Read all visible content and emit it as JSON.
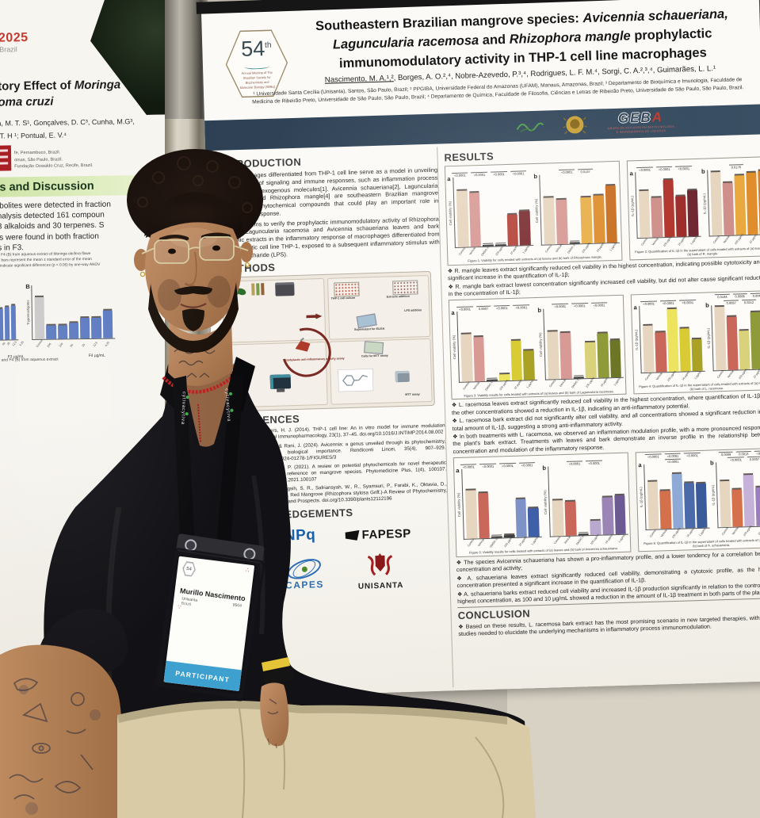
{
  "scene": {
    "lanyard_brand": "cytiva",
    "lanyard_repeat": [
      "cytiva",
      "cytiva"
    ]
  },
  "left_poster": {
    "year": "2025",
    "country": "Brazil",
    "title_pre": "atory Effect of ",
    "title_it1": "Moringa",
    "title_it2": "soma cruzi",
    "authors_l1": "eia, M. T. S¹, Gonçalves, D. C³, Cunha, M.G³,",
    "authors_l2": "o, T. H ¹; Pontual, E. V.⁴",
    "affiliations": [
      "fe, Pernambuco, Brazil.",
      "oinas, São Paulo, Brazil.",
      "Fundação Oswaldo Cruz, Recife, Brazil."
    ],
    "band": "lts and Discussion",
    "body_lines": [
      "tabolites were detected in fraction",
      "analysis detected 161 compoun",
      "73 alkaloids and 30 terpenes. S",
      "ids were found in both fraction",
      "ns in F3."
    ],
    "caption_lines": [
      "and F4 (B) from aqueous extract of Moringa oleifera flowe",
      "The bars represent the mean ± standard error of the mean",
      "ers indicate significant differences (p < 0.05) by one-way ANOV"
    ],
    "xlabel_a": "F3 µg/mL",
    "xlabel_b": "F4 µg/mL",
    "bottom_caption": "(A) and F4 (B) from aqueous extract"
  },
  "right_poster": {
    "logo54": {
      "number": "54",
      "sup": "th",
      "lines": [
        "Annual Meeting of The",
        "Brazilian Society for",
        "Biochemistry and",
        "Molecular Biology (SBBq)"
      ]
    },
    "title": {
      "l1a": "Southeastern Brazilian mangrove species: ",
      "l1b": "Avicennia schaueriana,",
      "l2a": "Laguncularia racemosa",
      "l2b": " and ",
      "l2c": "Rhizophora mangle",
      "l2d": " prophylactic",
      "l3": "immunomodulatory activity in THP-1 cell line macrophages"
    },
    "authors_presenting": "Nascimento, M. A.¹,²",
    "authors_rest": ", Borges, A. O.²,⁴, Nobre-Azevedo, P.³,⁴, Rodrigues, L. F. M.⁴, Sorgi, C. A.²,³,⁴, Guimarães, L. L.¹",
    "affiliations": "¹ Universidade Santa Cecília (Unisanta), Santos, São Paulo, Brazil; ² PPGIBA, Universidade Federal do Amazonas (UFAM), Manaus, Amazonas, Brazil; ³ Departamento de Bioquímica e Imunologia, Faculdade de Medicina de Ribeirão Preto, Universidade de São Paulo, São Paulo, Brazil; ⁴ Departamento de Química, Faculdade de Filosofia, Ciências e Letras de Ribeirão Preto, Universidade de São Paulo, São Paulo, Brazil.",
    "geba": {
      "white": "GEB",
      "red": "A",
      "sub1": "GRUPO DE ESTUDOS EM BIOTECNOLOGIA",
      "sub2": "E IMUNOQUÍMICA DE LÍQUIDOS"
    },
    "intro": {
      "heading": "INTRODUCTION",
      "p1": "The macrophages differentiated from THP-1 cell line serve as a model in unveiling different types of signaling and immune responses, such as inflammation process modulation by exogenous molecules[1]. Avicennia schaueriana[2], Laguncularia racemosa[3] and Rhizophora mangle[4] are southeastern Brazilian mangrove species with phytochemical compounds that could play an important role in inflammatory response.",
      "p2": "This study aims to verify the prophylactic immunomodulatory activity of Rhizophora mangle, Laguncularia racemosa and Avicennia schaueriana leaves and bark ethanolic extracts in the inflammatory response of macrophages differentiated from the monocytic cell line THP-1, exposed to a subsequent inflammatory stimulus with lipopolysaccharide (LPS)."
    },
    "methods": {
      "heading": "METHODS",
      "labels": [
        "THP-1 cell culture",
        "Extracts addition",
        "LPS addition",
        "Supernatant for ELISA",
        "Cells for MTT assay",
        "Prophylactic anti-inflammatory activity assay",
        "MTT assay"
      ]
    },
    "references": {
      "heading": "REFERENCES",
      "entries": [
        "Mes, J. J., & Wichers, H. J. (2014). THP-1 cell line: An in vitro model for immune modulation approach. International Immunopharmacology, 23(1), 37–45. doi.org/10.1016/J.INTIMP.2014.08.002",
        "Dhull, S. S., Gulia, V., & Rani, J. (2024). Avicennia: a genus unveiled through its phytochemistry, pharmacological and biological importance. Rendiconti Lincei, 35(4), 907–929. doi.org/10.1007/S12210-024-01278-1/FIGURES/3",
        "Naskar, N., & Chaudhuri, P. (2021). A review on potential phytochemicals for novel therapeutic applications with special reference on mangrove species. Phytomedicine Plus, 1(4), 100107. doi.org/10.1016/J.PHYPLU.2021.100107",
        "K., Miranti, M., Rahayuningsih, S. R., Safriansyah, W., R., Syamsuri, P., Farabi, K., Oktavia, D., Alhasnawi, A. N., & (2023). Red Mangrove (Rhizophora stylosa Griff.)-A Review of Phytochemistry, Pharmacological Activities, and Prospects. doi.org/10.3390/plants12112196"
      ]
    },
    "ack": {
      "heading": "ACKNOWLEDGEMENTS",
      "cnpq": "CNPq",
      "fapesp": "FAPESP",
      "capes": "CAPES",
      "unisanta": "UNISANTA"
    },
    "results": {
      "heading": "RESULTS",
      "bullets1": [
        "R. mangle leaves extract significantly reduced cell viability in the highest concentration, indicating possible cytotoxicity and a significant increase in the quantification of IL-1β;",
        "R. mangle bark extract lowest concentration significantly increased cell viability, but did not alter cause significant reduction in the concentration of IL-1β;"
      ],
      "bullets2": [
        "L. racemosa leaves extract significantly reduced cell viability in the highest concentration, where quantification of IL-1β, but the other concentrations showed a reduction in IL-1β, indicating an anti-inflammatory potential.",
        "L. racemosa bark extract did not significantly alter cell viability, and all concentrations showed a significant reduction in the total amount of IL-1β, suggesting a strong anti-inflammatory activity.",
        "In both treatments with L. racemosa, we observed an inflammation modulation profile, with a more pronounced response in the plant's bark extract. Treatments with leaves and bark demonstrate an inverse profile in the relationship between concentration and modulation of the inflammatory response."
      ],
      "bullets3": [
        "The species Avicennia schaueriana has shown a pro-inflammatory profile, and a lower tendency for a correlation between concentration and activity;",
        "A. schaueriana leaves extract significantly reduced cell viability, demonstrating a cytotoxic profile, as the highest concentration presented a significant increase in the quantification of IL-1β.",
        "A. schaueriana barks extract reduced cell viability and increased IL-1β production significantly in relation to the control in the highest concentration, as 100 and 10 µg/mL showed a reduction in the amount of IL-1β treatment in both parts of the plant."
      ]
    },
    "conclusion": {
      "heading": "CONCLUSION",
      "bullets": [
        "Based on these results, L. racemosa bark extract has the most promising scenario in new targeted therapies, with further studies needed to elucidate the underlying mechanisms in inflammatory process immunomodulation."
      ]
    }
  },
  "badge": {
    "logo_number": "54",
    "name": "Murillo Nascimento",
    "org": "Unisanta",
    "country": "Brazil",
    "number": "8504",
    "role": "PARTICIPANT"
  },
  "chart_data": [
    {
      "type": "bar",
      "caption": "Figure 1: Viability for cells treated with extracts of (a) leaves and (b) bark of Rhizophora mangle.",
      "panels": [
        {
          "label": "a",
          "ylabel": "Cell viability (%)",
          "scale": "linear",
          "ymax": 150,
          "categories": [
            "Control",
            "Vehicle",
            "DMSO 1%",
            "100 µg/mL",
            "10 µg/mL",
            "1 µg/mL"
          ],
          "values": [
            122,
            116,
            3,
            4,
            67,
            73
          ],
          "pvalues": [
            "<0.0001",
            "<0.0001",
            "<0.0001",
            "<0.0001"
          ],
          "colors": [
            "#e7d6bf",
            "#d89a95",
            "#3d3d3d",
            "#3d3d3d",
            "#b5453c",
            "#7c2f33"
          ]
        },
        {
          "label": "b",
          "ylabel": "Cell viability (%)",
          "scale": "linear",
          "ymax": 150,
          "categories": [
            "Control",
            "Vehicle",
            "DMSO 1%",
            "100 µg/mL",
            "10 µg/mL",
            "1 µg/mL"
          ],
          "values": [
            101,
            96,
            4,
            99,
            102,
            123
          ],
          "pvalues": [
            "<0.0001",
            "0.0137"
          ],
          "colors": [
            "#e7d6bf",
            "#d89a95",
            "#3d3d3d",
            "#e9b04c",
            "#df8f30",
            "#c96f22"
          ]
        }
      ]
    },
    {
      "type": "bar",
      "caption": "Figure 2: Quantification of IL-1β in the supernatant of cells treated with extracts of (a) leaves and (b) bark of R. mangle.",
      "panels": [
        {
          "label": "a",
          "ylabel": "IL-1β (pg/mL)",
          "scale": "log",
          "ymax": 10000,
          "categories": [
            "Control",
            "Vehicle",
            "100 µg/mL",
            "10 µg/mL",
            "1 µg/mL"
          ],
          "values": [
            700,
            260,
            3000,
            310,
            620
          ],
          "pvalues": [
            "<0.0001",
            "<0.0001",
            "<0.0001"
          ],
          "colors": [
            "#e7d6bf",
            "#cf8f8a",
            "#b0342c",
            "#9c2b28",
            "#6e2630"
          ]
        },
        {
          "label": "b",
          "ylabel": "IL-1β (pg/mL)",
          "scale": "log",
          "ymax": 1000,
          "categories": [
            "Control",
            "Vehicle",
            "100 µg/mL",
            "10 µg/mL",
            "1 µg/mL"
          ],
          "values": [
            820,
            260,
            520,
            680,
            740
          ],
          "pvalues": [
            "0.0176"
          ],
          "colors": [
            "#e7d6bf",
            "#cf8f8a",
            "#e9a93f",
            "#e08e2b",
            "#d97f1f"
          ]
        }
      ]
    },
    {
      "type": "bar",
      "caption": "Figure 3: Viability results for cells treated with extracts of (a) leaves and (b) bark of Laguncularia racemosa.",
      "panels": [
        {
          "label": "a",
          "ylabel": "Cell viability (%)",
          "scale": "linear",
          "ymax": 150,
          "categories": [
            "Control",
            "Vehicle",
            "DMSO 1%",
            "100 µg/mL",
            "10 µg/mL",
            "1 µg/mL"
          ],
          "values": [
            101,
            95,
            3,
            14,
            84,
            62
          ],
          "pvalues": [
            "<0.0001",
            "0.0007",
            "<0.0001",
            "<0.0001"
          ],
          "colors": [
            "#e7d6bf",
            "#d89a95",
            "#3d3d3d",
            "#ece35e",
            "#d9cb34",
            "#a9a224"
          ]
        },
        {
          "label": "b",
          "ylabel": "Cell viability (%)",
          "scale": "linear",
          "ymax": 150,
          "categories": [
            "Control",
            "Vehicle",
            "DMSO 1%",
            "100 µg/mL",
            "10 µg/mL",
            "1 µg/mL"
          ],
          "values": [
            102,
            97,
            3,
            76,
            94,
            79
          ],
          "pvalues": [
            "<0.0001",
            "<0.0001",
            "<0.0001"
          ],
          "colors": [
            "#e7d6bf",
            "#d89a95",
            "#3d3d3d",
            "#d9d27b",
            "#8f9a39",
            "#6d7527"
          ]
        }
      ]
    },
    {
      "type": "bar",
      "caption": "Figure 4: Quantification of IL-1β in the supernatant of cells treated with extracts of (a) leaves and (b) bark of L. racemosa.",
      "panels": [
        {
          "label": "a",
          "ylabel": "IL-1β (pg/mL)",
          "scale": "log",
          "ymax": 10000,
          "categories": [
            "Control",
            "Vehicle",
            "100 µg/mL",
            "10 µg/mL",
            "1 µg/mL"
          ],
          "values": [
            700,
            260,
            5600,
            360,
            85
          ],
          "pvalues": [
            "<0.0001",
            "<0.0001",
            "<0.0001"
          ],
          "colors": [
            "#e7d6bf",
            "#c9685a",
            "#ece35e",
            "#d9cb34",
            "#a9a224"
          ]
        },
        {
          "label": "b",
          "ylabel": "IL-1β (pg/mL)",
          "scale": "log",
          "ymax": 1000,
          "categories": [
            "Control",
            "Vehicle",
            "100 µg/mL",
            "10 µg/mL",
            "1 µg/mL"
          ],
          "values": [
            820,
            290,
            62,
            420,
            520
          ],
          "pvalues": [
            "0.0194",
            "0.0006",
            "0.0042",
            "0.0037",
            "0.0212"
          ],
          "colors": [
            "#e7d6bf",
            "#c9685a",
            "#d9d27b",
            "#8f9a39",
            "#6d7527"
          ]
        }
      ]
    },
    {
      "type": "bar",
      "caption": "Figure 5: Viability results for cells treated with extracts of (a) leaves and (b) bark of Avicennia schaueriana.",
      "panels": [
        {
          "label": "a",
          "ylabel": "Cell viability (%)",
          "scale": "linear",
          "ymax": 150,
          "categories": [
            "Control",
            "Vehicle",
            "DMSO 1%",
            "100 µg/mL",
            "10 µg/mL",
            "1 µg/mL"
          ],
          "values": [
            104,
            98,
            3,
            4,
            81,
            61
          ],
          "pvalues": [
            "<0.0001",
            "<0.0001",
            "<0.0001",
            "<0.0001"
          ],
          "colors": [
            "#e7d6bf",
            "#c9685a",
            "#3d3d3d",
            "#3d3d3d",
            "#7e92c7",
            "#3f5fa9"
          ]
        },
        {
          "label": "b",
          "ylabel": "Cell viability (%)",
          "scale": "linear",
          "ymax": 200,
          "categories": [
            "Control",
            "Vehicle",
            "DMSO 1%",
            "100 µg/mL",
            "10 µg/mL",
            "1 µg/mL"
          ],
          "values": [
            101,
            97,
            3,
            41,
            106,
            112
          ],
          "pvalues": [
            "<0.0001",
            "<0.0001"
          ],
          "colors": [
            "#e7d6bf",
            "#c9685a",
            "#3d3d3d",
            "#b9a9cf",
            "#9a85b5",
            "#6e5a92"
          ]
        }
      ]
    },
    {
      "type": "bar",
      "caption": "Figure 6: Quantification of IL-1β in the supernatant of cells treated with extracts of (a) leaves and (b) bark of A. schaueriana.",
      "panels": [
        {
          "label": "a",
          "ylabel": "IL-1β (pg/mL)",
          "scale": "log",
          "ymax": 10000,
          "categories": [
            "Control",
            "Vehicle",
            "100 µg/mL",
            "10 µg/mL",
            "1 µg/mL"
          ],
          "values": [
            820,
            230,
            2600,
            620,
            560
          ],
          "pvalues": [
            "<0.0001",
            "<0.0001",
            "<0.0001",
            "<0.0001"
          ],
          "colors": [
            "#e7d6bf",
            "#d4714c",
            "#8fa9d6",
            "#4a6aaa",
            "#3a5a99"
          ]
        },
        {
          "label": "b",
          "ylabel": "IL-1β (pg/mL)",
          "scale": "log",
          "ymax": 10000,
          "categories": [
            "Control",
            "Vehicle",
            "100 µg/mL",
            "10 µg/mL",
            "1 µg/mL"
          ],
          "values": [
            720,
            210,
            1550,
            260,
            230
          ],
          "pvalues": [
            "0.0009",
            "0.0013",
            "<0.0001",
            "<0.0001",
            "0.0007"
          ],
          "colors": [
            "#e7d6bf",
            "#d4714c",
            "#c6b1d8",
            "#9a7fba",
            "#7a5f99"
          ]
        }
      ]
    },
    {
      "type": "bar",
      "caption": "Trypomastigote viability — F3 (A) and F4 (B) fractions, Moringa oleifera aqueous extract (left poster, partially visible).",
      "panels": [
        {
          "label": "A",
          "ylabel": "",
          "scale": "linear",
          "ymax": 100,
          "categories": [
            "Control",
            "200",
            "100",
            "50",
            "25",
            "12.5",
            "6.25"
          ],
          "values": [
            20,
            24,
            30,
            46,
            57,
            60,
            63
          ],
          "pvalues": [],
          "colors": [
            "#5a79c0",
            "#5a79c0",
            "#5a79c0",
            "#5a79c0",
            "#5a79c0",
            "#5a79c0",
            "#5a79c0"
          ]
        },
        {
          "label": "B",
          "ylabel": "Trypomastigotes",
          "scale": "linear",
          "ymax": 100,
          "categories": [
            "Control",
            "200",
            "100",
            "50",
            "25",
            "12.5",
            "6.25"
          ],
          "values": [
            78,
            25,
            25,
            30,
            38,
            38,
            52
          ],
          "pvalues": [],
          "colors": [
            "#c9c9c9",
            "#5a79c0",
            "#5a79c0",
            "#5a79c0",
            "#5a79c0",
            "#5a79c0",
            "#5a79c0"
          ]
        }
      ]
    }
  ]
}
